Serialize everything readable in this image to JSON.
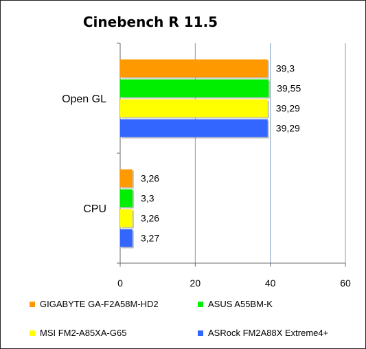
{
  "chart_data": {
    "type": "bar",
    "orientation": "horizontal",
    "title": "Cinebench R 11.5",
    "categories": [
      "Open GL",
      "CPU"
    ],
    "series": [
      {
        "name": "GIGABYTE GA-F2A58M-HD2",
        "color": "#ff9900",
        "values": [
          39.3,
          3.26
        ],
        "labels": [
          "39,3",
          "3,26"
        ]
      },
      {
        "name": "ASUS A55BM-K",
        "color": "#00ee00",
        "values": [
          39.55,
          3.3
        ],
        "labels": [
          "39,55",
          "3,3"
        ]
      },
      {
        "name": "MSI FM2-A85XA-G65",
        "color": "#ffff00",
        "values": [
          39.29,
          3.26
        ],
        "labels": [
          "39,29",
          "3,26"
        ]
      },
      {
        "name": "ASRock FM2A88X Extreme4+",
        "color": "#3366ff",
        "values": [
          39.29,
          3.27
        ],
        "labels": [
          "39,29",
          "3,27"
        ]
      }
    ],
    "xlim": [
      0,
      60
    ],
    "xticks": [
      0,
      20,
      40,
      60
    ],
    "xlabel": "",
    "ylabel": "",
    "grid": "vertical",
    "legend_position": "bottom"
  }
}
